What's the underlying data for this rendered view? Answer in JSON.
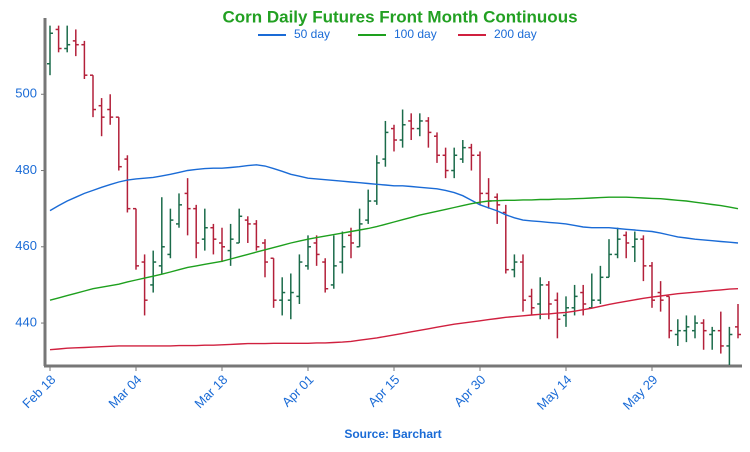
{
  "chart_data": {
    "type": "ohlc",
    "title": "Corn Daily Futures Front Month Continuous",
    "source": "Source: Barchart",
    "categories": [
      "Feb 18",
      null,
      null,
      null,
      null,
      null,
      null,
      null,
      null,
      null,
      "Mar 04",
      null,
      null,
      null,
      null,
      null,
      null,
      null,
      null,
      null,
      "Mar 18",
      null,
      null,
      null,
      null,
      null,
      null,
      null,
      null,
      null,
      "Apr 01",
      null,
      null,
      null,
      null,
      null,
      null,
      null,
      null,
      null,
      "Apr 15",
      null,
      null,
      null,
      null,
      null,
      null,
      null,
      null,
      null,
      "Apr 30",
      null,
      null,
      null,
      null,
      null,
      null,
      null,
      null,
      null,
      "May 14",
      null,
      null,
      null,
      null,
      null,
      null,
      null,
      null,
      null,
      "May 29",
      null,
      null,
      null,
      null,
      null,
      null,
      null,
      null,
      null,
      null
    ],
    "ohlc": {
      "up_color": "#1b6b4a",
      "down_color": "#b3203a",
      "open": [
        508,
        517,
        512,
        514,
        513,
        505,
        497,
        496,
        494,
        483,
        470,
        456,
        450,
        455,
        458,
        466,
        474,
        470,
        462,
        465,
        461,
        459,
        461,
        467,
        466,
        461,
        457,
        446,
        446,
        447,
        455,
        461,
        456,
        450,
        456,
        463,
        460,
        467,
        472,
        483,
        491,
        488,
        493,
        491,
        493,
        489,
        484,
        480,
        483,
        486,
        484,
        474,
        473,
        469,
        454,
        456,
        447,
        445,
        450,
        446,
        442,
        444,
        448,
        444,
        446,
        452,
        458,
        463,
        460,
        462,
        455,
        448,
        447,
        437,
        438,
        438,
        440,
        437,
        438,
        434,
        439
      ],
      "high": [
        518,
        518,
        518,
        517,
        514,
        505,
        499,
        500,
        494,
        484,
        470,
        458,
        459,
        473,
        470,
        474,
        478,
        471,
        470,
        466,
        465,
        466,
        470,
        468,
        467,
        462,
        457,
        452,
        453,
        458,
        463,
        463,
        457,
        463,
        464,
        465,
        470,
        475,
        484,
        493,
        492,
        496,
        495,
        495,
        494,
        490,
        486,
        486,
        488,
        487,
        485,
        478,
        474,
        471,
        458,
        458,
        449,
        452,
        451,
        448,
        447,
        450,
        450,
        453,
        455,
        462,
        465,
        464,
        464,
        463,
        456,
        451,
        447,
        441,
        442,
        442,
        441,
        439,
        443,
        439,
        445
      ],
      "low": [
        505,
        511,
        511,
        510,
        504,
        494,
        489,
        492,
        480,
        469,
        454,
        442,
        448,
        453,
        457,
        465,
        463,
        457,
        459,
        458,
        456,
        455,
        461,
        461,
        459,
        452,
        444,
        442,
        441,
        445,
        454,
        455,
        448,
        449,
        453,
        457,
        460,
        466,
        471,
        481,
        485,
        486,
        488,
        489,
        486,
        482,
        478,
        478,
        482,
        480,
        471,
        470,
        466,
        453,
        452,
        443,
        442,
        441,
        441,
        436,
        439,
        442,
        442,
        444,
        445,
        452,
        457,
        457,
        456,
        451,
        444,
        443,
        436,
        434,
        435,
        436,
        433,
        433,
        432,
        429,
        436
      ],
      "close": [
        516,
        512,
        513,
        513,
        505,
        496,
        494,
        494,
        481,
        470,
        455,
        446,
        456,
        460,
        467,
        471,
        470,
        461,
        465,
        462,
        460,
        462,
        468,
        466,
        460,
        456,
        446,
        448,
        448,
        456,
        460,
        458,
        449,
        455,
        460,
        461,
        466,
        472,
        482,
        490,
        488,
        492,
        491,
        493,
        490,
        484,
        480,
        484,
        486,
        484,
        474,
        472,
        471,
        454,
        456,
        446,
        444,
        450,
        445,
        441,
        444,
        447,
        445,
        446,
        452,
        458,
        462,
        461,
        462,
        455,
        446,
        446,
        438,
        438,
        439,
        440,
        438,
        438,
        434,
        437,
        437
      ]
    },
    "series": [
      {
        "name": "50 day",
        "color": "#1a6bd6",
        "values": [
          469.5,
          470.8,
          472,
          473,
          474,
          474.8,
          475.6,
          476.3,
          477,
          477.5,
          477.8,
          478,
          478.2,
          478.6,
          479,
          479.5,
          480,
          480.3,
          480.5,
          480.6,
          480.6,
          480.8,
          481,
          481.3,
          481.5,
          481.2,
          480.5,
          479.8,
          479,
          478.5,
          478,
          477.8,
          477.6,
          477.4,
          477.2,
          477,
          476.8,
          476.6,
          476.4,
          476.2,
          476,
          476,
          475.8,
          475.6,
          475.4,
          475.2,
          474.8,
          474.2,
          473.4,
          472.2,
          471,
          470.2,
          469.4,
          468.4,
          467.6,
          467,
          466.8,
          466.6,
          466.4,
          466.2,
          466,
          465.6,
          465.2,
          465,
          465,
          465,
          464.8,
          464.6,
          464.4,
          464.2,
          464,
          463.6,
          463.1,
          462.6,
          462.3,
          462,
          461.8,
          461.6,
          461.4,
          461.2,
          461
        ]
      },
      {
        "name": "100 day",
        "color": "#1ea01e",
        "values": [
          446,
          446.6,
          447.2,
          447.8,
          448.4,
          449,
          449.4,
          449.8,
          450.2,
          450.8,
          451.3,
          451.8,
          452.3,
          452.8,
          453.4,
          454,
          454.6,
          455,
          455.4,
          455.8,
          456.2,
          456.8,
          457.4,
          458,
          458.6,
          459.2,
          459.8,
          460.4,
          461,
          461.5,
          462,
          462.4,
          462.8,
          463.2,
          463.6,
          464,
          464.4,
          464.8,
          465.3,
          465.9,
          466.5,
          467.1,
          467.7,
          468.3,
          468.8,
          469.3,
          469.8,
          470.3,
          470.8,
          471.3,
          471.7,
          472,
          472.1,
          472.2,
          472.2,
          472.3,
          472.3,
          472.4,
          472.4,
          472.5,
          472.5,
          472.6,
          472.7,
          472.8,
          472.9,
          473,
          473,
          473,
          472.9,
          472.8,
          472.7,
          472.6,
          472.4,
          472.2,
          472,
          471.7,
          471.4,
          471.1,
          470.8,
          470.4,
          470
        ]
      },
      {
        "name": "200 day",
        "color": "#d0203f",
        "values": [
          433,
          433.2,
          433.4,
          433.5,
          433.6,
          433.7,
          433.8,
          433.9,
          434,
          434,
          434,
          434,
          434,
          434,
          434,
          434.1,
          434.1,
          434.1,
          434.2,
          434.2,
          434.3,
          434.4,
          434.5,
          434.6,
          434.6,
          434.6,
          434.7,
          434.7,
          434.7,
          434.7,
          434.7,
          434.8,
          434.8,
          434.9,
          435,
          435.2,
          435.5,
          435.8,
          436.1,
          436.5,
          436.9,
          437.3,
          437.7,
          438.1,
          438.5,
          438.9,
          439.3,
          439.7,
          440,
          440.3,
          440.6,
          440.9,
          441.2,
          441.5,
          441.7,
          441.9,
          442.1,
          442.3,
          442.4,
          442.6,
          442.8,
          443.1,
          443.5,
          443.9,
          444.4,
          444.9,
          445.3,
          445.7,
          446.1,
          446.5,
          446.8,
          447.1,
          447.4,
          447.7,
          447.9,
          448.1,
          448.3,
          448.5,
          448.7,
          448.9,
          449
        ]
      }
    ],
    "ylim": [
      429,
      520
    ],
    "yticks": [
      440,
      460,
      480,
      500
    ],
    "grid": false
  }
}
